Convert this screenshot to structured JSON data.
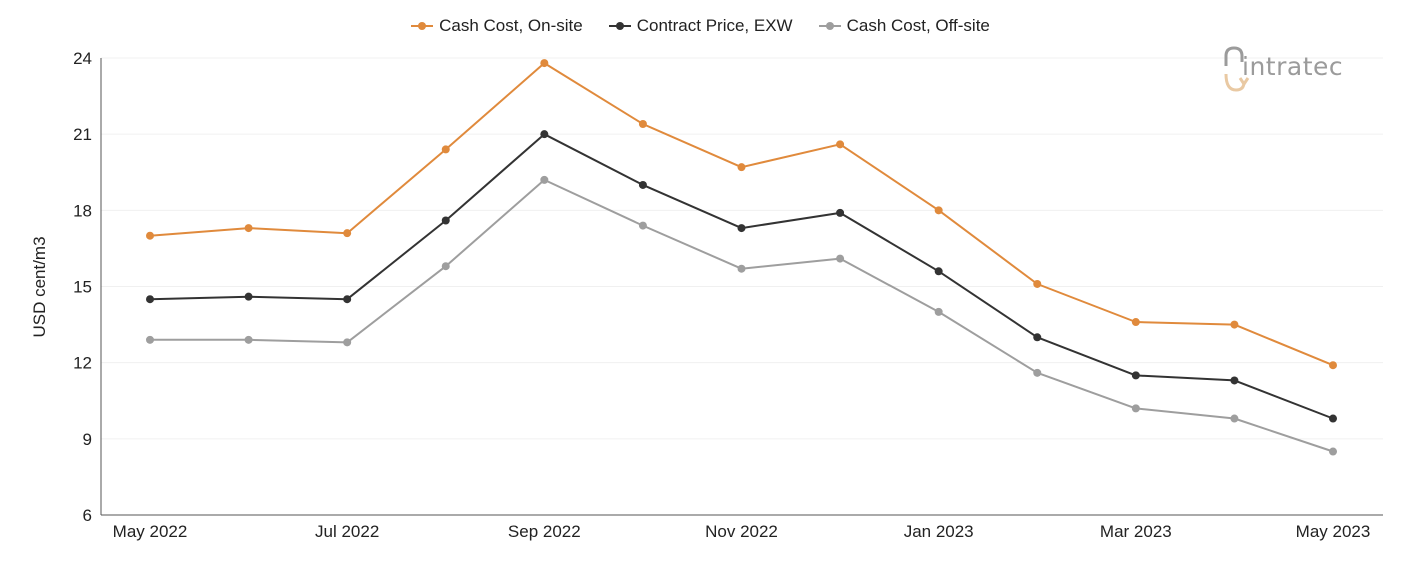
{
  "logo": {
    "text": "intratec"
  },
  "legend": [
    {
      "label": "Cash Cost, On-site",
      "color": "#e08a3c"
    },
    {
      "label": "Contract Price, EXW",
      "color": "#333333"
    },
    {
      "label": "Cash Cost, Off-site",
      "color": "#9e9e9e"
    }
  ],
  "chart_data": {
    "type": "line",
    "xlabel": "",
    "ylabel": "USD cent/m3",
    "ylim": [
      6,
      24
    ],
    "yticks": [
      6,
      9,
      12,
      15,
      18,
      21,
      24
    ],
    "x": [
      "May 2022",
      "Jun 2022",
      "Jul 2022",
      "Aug 2022",
      "Sep 2022",
      "Oct 2022",
      "Nov 2022",
      "Dec 2022",
      "Jan 2023",
      "Feb 2023",
      "Mar 2023",
      "Apr 2023",
      "May 2023"
    ],
    "xtick_labels": [
      "May 2022",
      "",
      "Jul 2022",
      "",
      "Sep 2022",
      "",
      "Nov 2022",
      "",
      "Jan 2023",
      "",
      "Mar 2023",
      "",
      "May 2023"
    ],
    "grid": true,
    "legend_position": "top-center",
    "series": [
      {
        "name": "Cash Cost, On-site",
        "color": "#e08a3c",
        "values": [
          17.0,
          17.3,
          17.1,
          20.4,
          23.8,
          21.4,
          19.7,
          20.6,
          18.0,
          15.1,
          13.6,
          13.5,
          11.9
        ]
      },
      {
        "name": "Contract Price, EXW",
        "color": "#333333",
        "values": [
          14.5,
          14.6,
          14.5,
          17.6,
          21.0,
          19.0,
          17.3,
          17.9,
          15.6,
          13.0,
          11.5,
          11.3,
          9.8
        ]
      },
      {
        "name": "Cash Cost, Off-site",
        "color": "#9e9e9e",
        "values": [
          12.9,
          12.9,
          12.8,
          15.8,
          19.2,
          17.4,
          15.7,
          16.1,
          14.0,
          11.6,
          10.2,
          9.8,
          8.5
        ]
      }
    ]
  }
}
